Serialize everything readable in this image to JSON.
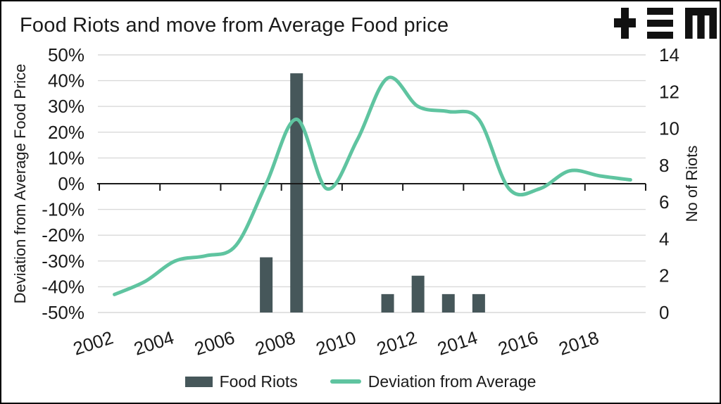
{
  "header": {
    "title": "Food Riots and move from Average Food price",
    "logo_glyphs": [
      "plus",
      "triple-bar",
      "m"
    ]
  },
  "chart": {
    "left_axis": {
      "title": "Deviation from Average Food Price",
      "tick_labels": [
        "50%",
        "40%",
        "30%",
        "20%",
        "10%",
        "0%",
        "-10%",
        "-20%",
        "-30%",
        "-40%",
        "-50%"
      ],
      "min": -50,
      "max": 50,
      "step": 10,
      "unit": "%"
    },
    "right_axis": {
      "title": "No of Riots",
      "tick_labels": [
        "14",
        "12",
        "10",
        "8",
        "6",
        "4",
        "2",
        "0"
      ],
      "min": 0,
      "max": 14,
      "step": 2
    },
    "x_axis": {
      "tick_labels": [
        "2002",
        "2004",
        "2006",
        "2008",
        "2010",
        "2012",
        "2014",
        "2016",
        "2018"
      ]
    },
    "legend": [
      {
        "label": "Food Riots",
        "swatch": "bar",
        "color": "#46575a"
      },
      {
        "label": "Deviation from Average",
        "swatch": "line",
        "color": "#5fc4a0"
      }
    ]
  },
  "style": {
    "grid_color": "#d9d9d9",
    "zero_line_color": "#1a1a1a",
    "text_color": "#1a1a1a",
    "bar_color": "#46575a",
    "line_color": "#5fc4a0",
    "background": "#ffffff",
    "border_color": "#000000",
    "logo_color": "#111111"
  },
  "chart_data": {
    "type": "combo",
    "title": "Food Riots and move from Average Food price",
    "x": [
      2002,
      2003,
      2004,
      2005,
      2006,
      2007,
      2008,
      2009,
      2010,
      2011,
      2012,
      2013,
      2014,
      2015,
      2016,
      2017,
      2018,
      2019
    ],
    "series": [
      {
        "name": "Food Riots",
        "type": "bar",
        "axis": "right",
        "color": "#46575a",
        "values": [
          0,
          0,
          0,
          0,
          0,
          3,
          13,
          0,
          0,
          1,
          2,
          1,
          1,
          0,
          0,
          0,
          0,
          0
        ]
      },
      {
        "name": "Deviation from Average",
        "type": "line",
        "axis": "left",
        "color": "#5fc4a0",
        "smooth": true,
        "values": [
          -43,
          -38,
          -30,
          -28,
          -24,
          0,
          25,
          -2,
          17,
          41,
          30,
          28,
          25,
          -2,
          -2,
          5,
          3,
          1.5
        ]
      }
    ],
    "left_ylim": [
      -50,
      50
    ],
    "right_ylim": [
      0,
      14
    ],
    "left_ylabel": "Deviation from Average Food Price",
    "right_ylabel": "No of Riots",
    "grid": true,
    "legend_position": "bottom"
  }
}
